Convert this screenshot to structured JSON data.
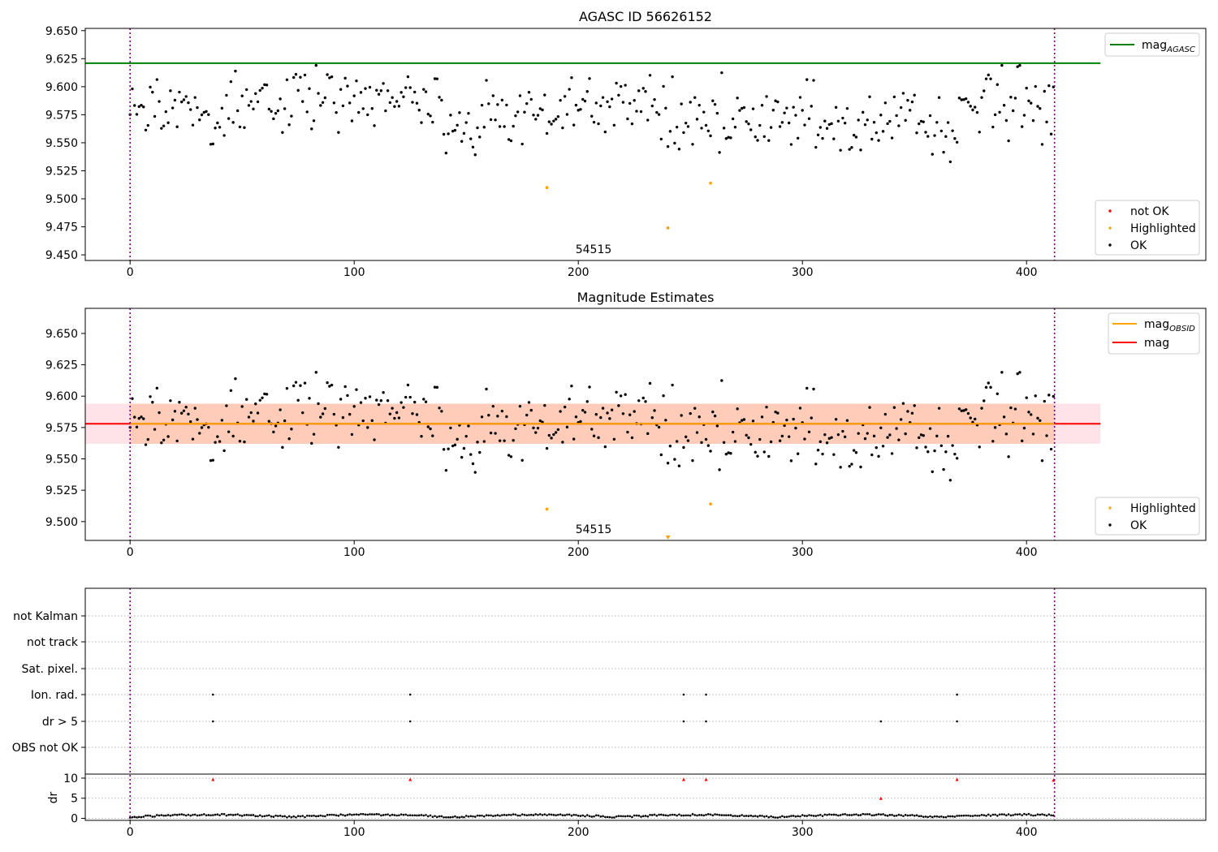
{
  "chart_data": [
    {
      "type": "scatter",
      "title": "AGASC ID 56626152",
      "xlim": [
        -20,
        480
      ],
      "ylim": [
        9.445,
        9.652
      ],
      "y_ticks": [
        "9.450",
        "9.475",
        "9.500",
        "9.525",
        "9.550",
        "9.575",
        "9.600",
        "9.625",
        "9.650"
      ],
      "x_ticks": [
        "0",
        "100",
        "200",
        "300",
        "400"
      ],
      "annotation": "54515",
      "vlines": [
        0,
        412.5
      ],
      "hline": {
        "name": "mag_AGASC",
        "value": 9.621,
        "x_range": [
          -20,
          433
        ]
      },
      "highlighted": [
        {
          "x": 186,
          "y": 9.51
        },
        {
          "x": 240,
          "y": 9.474
        },
        {
          "x": 259,
          "y": 9.514
        }
      ],
      "legend_top": [
        {
          "label": "mag",
          "sub": "AGASC",
          "color": "#008000"
        }
      ],
      "legend_bottom": [
        {
          "label": "not OK",
          "color": "#ff0000"
        },
        {
          "label": "Highlighted",
          "color": "#ffa500"
        },
        {
          "label": "OK",
          "color": "#000000"
        }
      ]
    },
    {
      "type": "scatter",
      "title": "Magnitude Estimates",
      "xlim": [
        -20,
        480
      ],
      "ylim": [
        9.485,
        9.67
      ],
      "y_ticks": [
        "9.500",
        "9.525",
        "9.550",
        "9.575",
        "9.600",
        "9.625",
        "9.650"
      ],
      "x_ticks": [
        "0",
        "100",
        "200",
        "300",
        "400"
      ],
      "annotation": "54515",
      "vlines": [
        0,
        412.5
      ],
      "mag": 9.578,
      "mag_obsid": 9.578,
      "band_outer": [
        9.562,
        9.594
      ],
      "band_inner": [
        9.562,
        9.594
      ],
      "band_x_range": [
        -20,
        433
      ],
      "highlighted": [
        {
          "x": 186,
          "y": 9.51
        },
        {
          "x": 259,
          "y": 9.514
        }
      ],
      "out_of_range_marker": {
        "x": 240
      },
      "legend_top": [
        {
          "label": "mag",
          "sub": "OBSID",
          "color": "#ffa500"
        },
        {
          "label": "mag",
          "sub": "",
          "color": "#ff0000"
        }
      ],
      "legend_bottom": [
        {
          "label": "Highlighted",
          "color": "#ffa500"
        },
        {
          "label": "OK",
          "color": "#000000"
        }
      ]
    },
    {
      "type": "scatter",
      "title": "",
      "xlim": [
        -20,
        480
      ],
      "x_ticks": [
        "0",
        "100",
        "200",
        "300",
        "400"
      ],
      "vlines": [
        0,
        412.5
      ],
      "flag_labels": [
        "not Kalman",
        "not track",
        "Sat. pixel.",
        "Ion. rad.",
        "dr > 5",
        "OBS not OK"
      ],
      "flags": {
        "Ion. rad.": [
          37,
          125,
          247,
          257,
          369
        ],
        "dr > 5": [
          37,
          125,
          247,
          257,
          335,
          369
        ]
      },
      "dr_label": "dr",
      "dr_ticks": [
        "0",
        "5",
        "10"
      ],
      "dr_ylim": [
        -0.5,
        11
      ],
      "dr_outliers": [
        {
          "x": 37,
          "y": 9.7
        },
        {
          "x": 125,
          "y": 9.7
        },
        {
          "x": 247,
          "y": 9.7
        },
        {
          "x": 257,
          "y": 9.7
        },
        {
          "x": 335,
          "y": 5.0
        },
        {
          "x": 369,
          "y": 9.7
        },
        {
          "x": 412,
          "y": 9.5
        }
      ]
    }
  ]
}
